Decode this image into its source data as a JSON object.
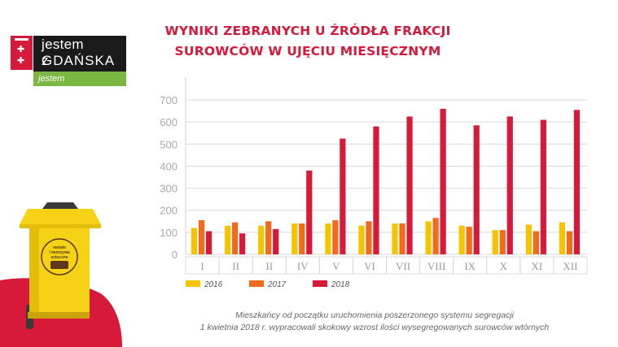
{
  "page": {
    "title_line1": "WYNIKI ZEBRANYCH U ŹRÓDŁA FRAKCJI",
    "title_line2": "SUROWCÓW W UJĘCIU MIESIĘCZNYM",
    "caption_line1": "Mieszkańcy od początku uruchomienia poszerzonego systemu segregacji",
    "caption_line2": "1 kwietnia 2018 r. wypracowali skokowy wzrost ilości wysegregowanych surowców wtórnych"
  },
  "logo": {
    "line1": "jestem z",
    "line2": "GDAŃSKA",
    "line3": "jestem eko"
  },
  "bin": {
    "label_line1": "metale",
    "label_line2": "i tworzywa",
    "label_line3": "sztuczne",
    "body_color": "#f5d216",
    "icon_name": "recycling-bin-icon"
  },
  "chart_data": {
    "type": "bar",
    "title": "",
    "xlabel": "",
    "ylabel": "",
    "categories": [
      "I",
      "II",
      "II",
      "IV",
      "V",
      "VI",
      "VII",
      "VIII",
      "IX",
      "X",
      "XI",
      "XII"
    ],
    "yticks": [
      0,
      100,
      200,
      300,
      400,
      500,
      600,
      700
    ],
    "ylim": [
      0,
      780
    ],
    "grid": true,
    "legend_position": "bottom-left",
    "series": [
      {
        "name": "2016",
        "color": "#f5c400",
        "values": [
          120,
          130,
          130,
          140,
          140,
          130,
          140,
          150,
          130,
          110,
          135,
          145
        ]
      },
      {
        "name": "2017",
        "color": "#f26b1d",
        "values": [
          155,
          145,
          150,
          140,
          155,
          150,
          140,
          165,
          125,
          110,
          105,
          105
        ]
      },
      {
        "name": "2018",
        "color": "#d7193a",
        "values": [
          105,
          95,
          115,
          380,
          525,
          580,
          625,
          660,
          585,
          625,
          610,
          655
        ]
      }
    ]
  }
}
